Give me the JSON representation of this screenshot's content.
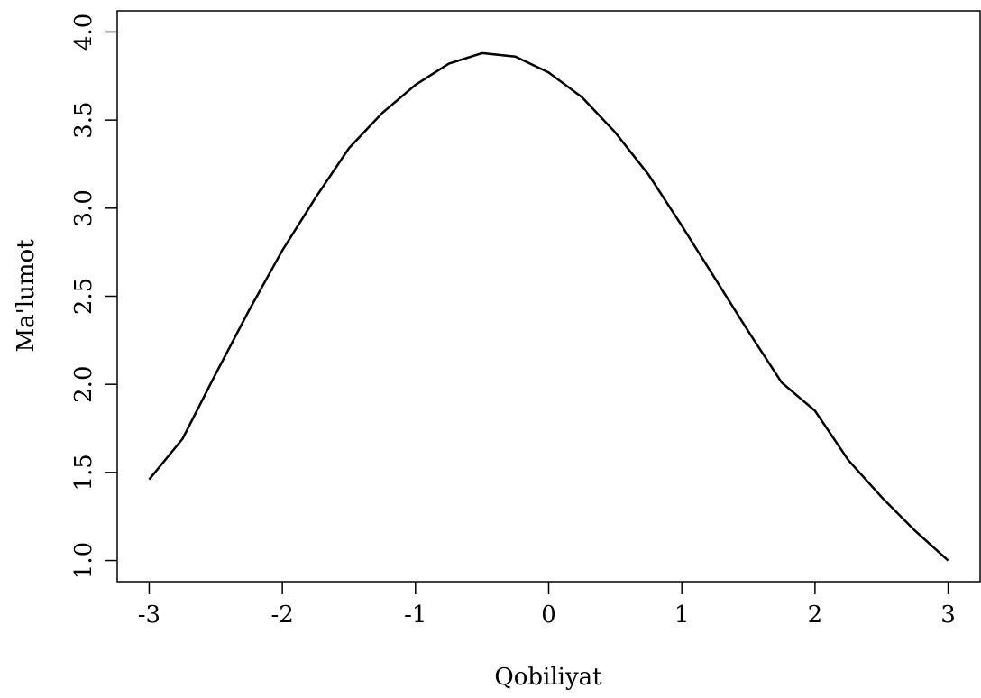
{
  "chart_data": {
    "type": "line",
    "x_label": "Qobiliyat",
    "y_label": "Ma'lumot",
    "x": [
      -3,
      -2.75,
      -2.5,
      -2.25,
      -2,
      -1.75,
      -1.5,
      -1.25,
      -1,
      -0.75,
      -0.5,
      -0.25,
      0,
      0.25,
      0.5,
      0.75,
      1,
      1.25,
      1.5,
      1.75,
      2,
      2.25,
      2.5,
      2.75,
      3
    ],
    "series": [
      {
        "color": "#000000",
        "values": [
          1.46,
          1.69,
          2.06,
          2.42,
          2.76,
          3.06,
          3.34,
          3.54,
          3.7,
          3.82,
          3.88,
          3.86,
          3.77,
          3.63,
          3.43,
          3.19,
          2.9,
          2.6,
          2.3,
          2.01,
          1.85,
          1.57,
          1.36,
          1.17,
          1.0
        ]
      }
    ],
    "xlim": [
      -3.24,
      3.24
    ],
    "ylim": [
      0.88,
      4.12
    ],
    "xticks": [
      -3,
      -2,
      -1,
      0,
      1,
      2,
      3
    ],
    "yticks": [
      {
        "value": 1,
        "label": "1.0"
      },
      1.5,
      {
        "value": 2,
        "label": "2.0"
      },
      2.5,
      {
        "value": 3,
        "label": "3.0"
      },
      3.5,
      {
        "value": 4,
        "label": "4.0"
      }
    ],
    "grid": false
  }
}
